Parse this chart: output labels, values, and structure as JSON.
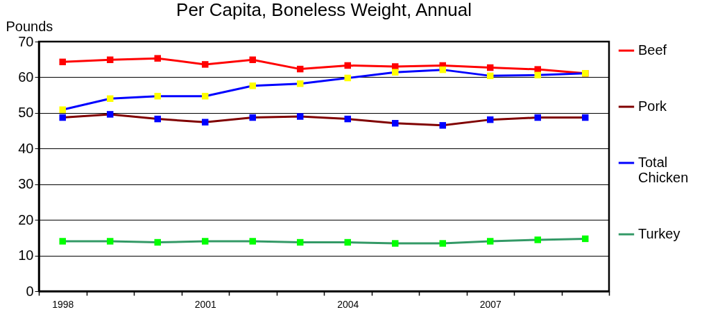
{
  "chart_data": {
    "type": "line",
    "title": "Per Capita, Boneless Weight, Annual",
    "ylabel": "Pounds",
    "categories": [
      "1998",
      null,
      null,
      "2001",
      null,
      null,
      "2004",
      null,
      null,
      "2007",
      null,
      null
    ],
    "ylim": [
      0,
      70
    ],
    "yticks": [
      0,
      10,
      20,
      30,
      40,
      50,
      60,
      70
    ],
    "grid": "y",
    "legend": "right",
    "marker": "square",
    "line_style": "solid",
    "series": [
      {
        "name": "Beef",
        "color": "#ff0000",
        "colors": [
          "#ff0000",
          "#ff0000",
          "#ff0000",
          "#ff0000",
          "#ff0000",
          "#ff0000",
          "#ff0000",
          "#ff0000",
          "#ff0000",
          "#ff0000",
          "#ff0000",
          "#ff0000"
        ],
        "values": [
          64.3,
          64.9,
          65.3,
          63.6,
          64.9,
          62.3,
          63.3,
          63.0,
          63.3,
          62.7,
          62.2,
          61.1
        ]
      },
      {
        "name": "Pork",
        "color": "#800000",
        "colors": [
          "#0000ff",
          "#0000ff",
          "#0000ff",
          "#0000ff",
          "#0000ff",
          "#0000ff",
          "#0000ff",
          "#0000ff",
          "#0000ff",
          "#0000ff",
          "#0000ff",
          "#0000ff"
        ],
        "values": [
          48.7,
          49.6,
          48.3,
          47.4,
          48.7,
          49.0,
          48.3,
          47.1,
          46.5,
          48.1,
          48.7,
          48.7
        ]
      },
      {
        "name": "Total Chicken",
        "color": "#0000ff",
        "colors": [
          "#ffff00",
          "#ffff00",
          "#ffff00",
          "#ffff00",
          "#ffff00",
          "#ffff00",
          "#ffff00",
          "#ffff00",
          "#ffff00",
          "#ffff00",
          "#ffff00",
          "#ffff00"
        ],
        "values": [
          50.9,
          54.0,
          54.7,
          54.7,
          57.6,
          58.2,
          59.8,
          61.4,
          62.1,
          60.4,
          60.6,
          61.1
        ]
      },
      {
        "name": "Turkey",
        "color": "#339966",
        "colors": [
          "#00ff00",
          "#00ff00",
          "#00ff00",
          "#00ff00",
          "#00ff00",
          "#00ff00",
          "#00ff00",
          "#00ff00",
          "#00ff00",
          "#00ff00",
          "#00ff00",
          "#00ff00"
        ],
        "values": [
          14.0,
          14.0,
          13.7,
          14.0,
          14.0,
          13.7,
          13.7,
          13.4,
          13.4,
          14.0,
          14.4,
          14.7
        ]
      }
    ]
  }
}
